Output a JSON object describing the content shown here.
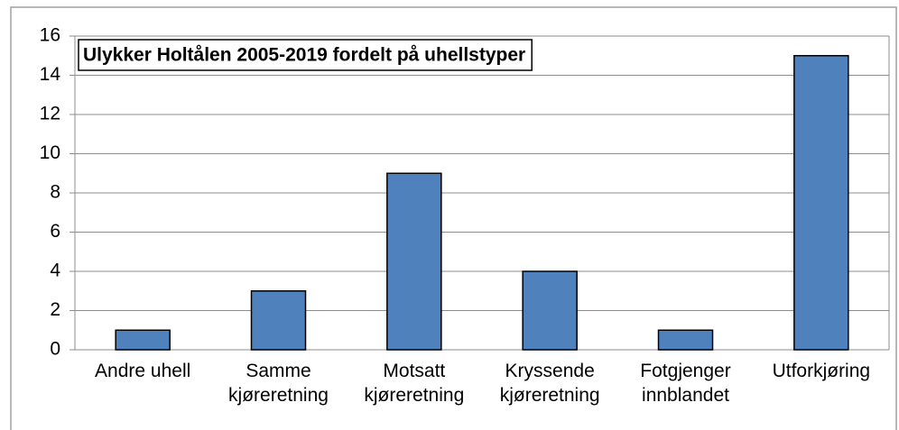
{
  "chart_data": {
    "type": "bar",
    "title": "Ulykker Holtålen 2005-2019 fordelt på uhellstyper",
    "categories": [
      "Andre uhell",
      "Samme kjøreretning",
      "Motsatt kjøreretning",
      "Kryssende kjøreretning",
      "Fotgjenger innblandet",
      "Utforkjøring"
    ],
    "values": [
      1,
      3,
      9,
      4,
      1,
      15
    ],
    "color": "#4f81bd",
    "ylim": [
      0,
      16
    ],
    "yticks": [
      0,
      2,
      4,
      6,
      8,
      10,
      12,
      14,
      16
    ],
    "grid": true
  }
}
